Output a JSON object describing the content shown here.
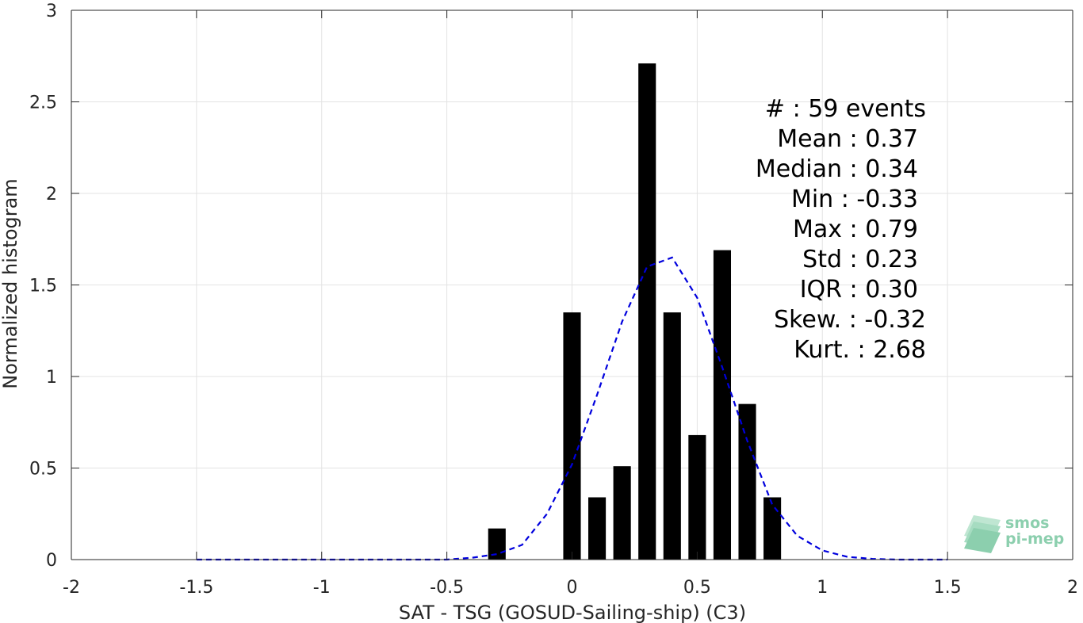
{
  "chart_data": {
    "type": "bar",
    "title": "",
    "xlabel": "SAT - TSG (GOSUD-Sailing-ship) (C3)",
    "ylabel": "Normalized histogram",
    "xlim": [
      -2,
      2
    ],
    "ylim": [
      0,
      3
    ],
    "grid": true,
    "x_ticks": [
      -2,
      -1.5,
      -1,
      -0.5,
      0,
      0.5,
      1,
      1.5,
      2
    ],
    "x_tick_labels": [
      "-2",
      "-1.5",
      "-1",
      "-0.5",
      "0",
      "0.5",
      "1",
      "1.5",
      "2"
    ],
    "y_ticks": [
      0,
      0.5,
      1,
      1.5,
      2,
      2.5,
      3
    ],
    "y_tick_labels": [
      "0",
      "0.5",
      "1",
      "1.5",
      "2",
      "2.5",
      "3"
    ],
    "bar_width": 0.07,
    "bars": {
      "x": [
        -0.3,
        0.0,
        0.1,
        0.2,
        0.3,
        0.4,
        0.5,
        0.6,
        0.7,
        0.8
      ],
      "values": [
        0.17,
        1.35,
        0.34,
        0.51,
        2.71,
        1.35,
        0.68,
        1.69,
        0.85,
        0.34
      ],
      "color": "#000000"
    },
    "fit_curve": {
      "style": "dashed",
      "color": "#0000dd",
      "x": [
        -1.5,
        -1.0,
        -0.5,
        -0.4,
        -0.3,
        -0.2,
        -0.1,
        0.0,
        0.1,
        0.2,
        0.3,
        0.4,
        0.5,
        0.6,
        0.7,
        0.8,
        0.9,
        1.0,
        1.1,
        1.2,
        1.3,
        1.5
      ],
      "y": [
        0.0,
        0.0,
        0.0,
        0.01,
        0.03,
        0.08,
        0.25,
        0.52,
        0.9,
        1.3,
        1.6,
        1.65,
        1.43,
        1.05,
        0.65,
        0.3,
        0.13,
        0.05,
        0.015,
        0.004,
        0.0,
        0.0
      ]
    },
    "annotations": [
      "#  : 59 events",
      "Mean : 0.37",
      "Median : 0.34",
      "Min : -0.33",
      "Max : 0.79",
      "Std : 0.23",
      "IQR : 0.30",
      "Skew. : -0.32",
      "Kurt. : 2.68"
    ]
  },
  "logo": {
    "line1": "smos",
    "line2": "pi-mep",
    "color": "#8ccfae"
  }
}
